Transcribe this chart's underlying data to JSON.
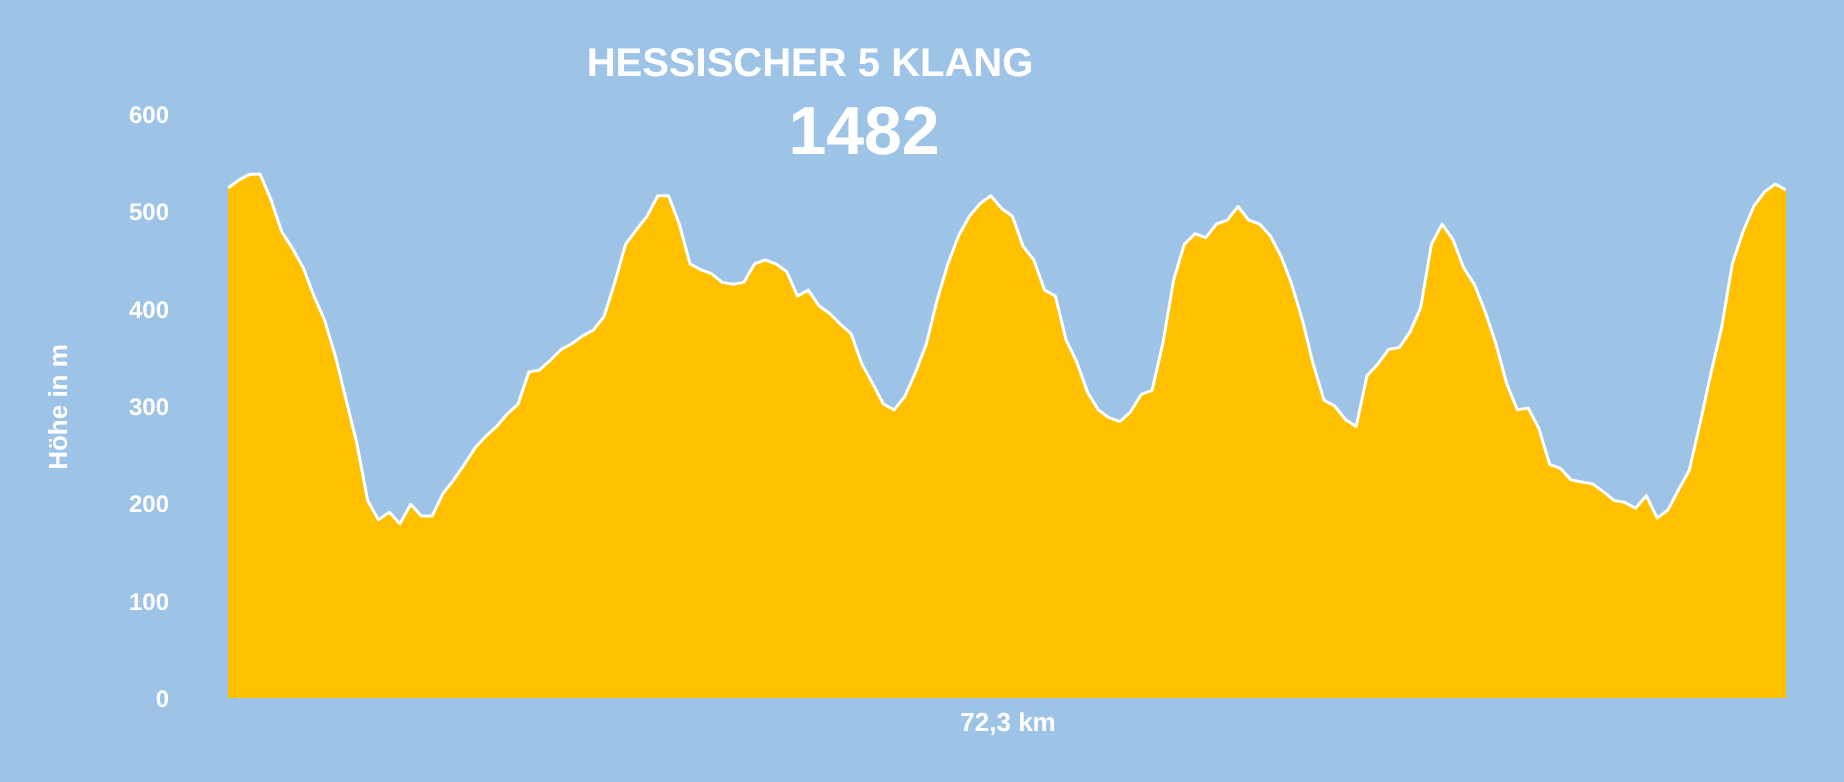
{
  "chart_data": {
    "type": "area",
    "title": "HESSISCHER 5 KLANG",
    "annotations": [
      "1482"
    ],
    "xlabel": "72,3 km",
    "ylabel": "Höhe in m",
    "categories": [
      null,
      null,
      null,
      null,
      null,
      null,
      null,
      null,
      null,
      null,
      null,
      null,
      null,
      null,
      null,
      null,
      null,
      null,
      null,
      null,
      null,
      null,
      null,
      null,
      null,
      null,
      null,
      null,
      null,
      null,
      null,
      null,
      null,
      null,
      null,
      null,
      null,
      null,
      null,
      null,
      null,
      null,
      null,
      null,
      null,
      null,
      null,
      null,
      null,
      null,
      null,
      null,
      null,
      null,
      null,
      null,
      null,
      null,
      null,
      null,
      null,
      null,
      null,
      null,
      null,
      null,
      null,
      null,
      null,
      null,
      null,
      null,
      null,
      null,
      null,
      null,
      null,
      null,
      null,
      null,
      null,
      null,
      null,
      null,
      null,
      null,
      null,
      null,
      null,
      null,
      null,
      null,
      null,
      null,
      null,
      null,
      null,
      null,
      null,
      null,
      null,
      null,
      null,
      null,
      null,
      null,
      null,
      null,
      null,
      null,
      null,
      null,
      null,
      null,
      null,
      null,
      null,
      null,
      null,
      null,
      null,
      null,
      null,
      null,
      null,
      null,
      null,
      null,
      null,
      null,
      null,
      null,
      null,
      null,
      null,
      null,
      null,
      null,
      null,
      null,
      null,
      null,
      null,
      null,
      null,
      null
    ],
    "series": [
      {
        "color": "#ffc000",
        "values": [
          524,
          532,
          538,
          538,
          512,
          479,
          462,
          442,
          413,
          388,
          351,
          306,
          261,
          203,
          183,
          191,
          179,
          199,
          187,
          187,
          210,
          224,
          240,
          257,
          269,
          279,
          292,
          302,
          335,
          337,
          347,
          358,
          364,
          372,
          378,
          392,
          427,
          466,
          481,
          495,
          516,
          516,
          487,
          446,
          440,
          436,
          427,
          425,
          427,
          446,
          450,
          446,
          438,
          413,
          419,
          403,
          395,
          384,
          374,
          343,
          323,
          302,
          296,
          310,
          335,
          364,
          409,
          446,
          475,
          495,
          508,
          516,
          503,
          495,
          464,
          450,
          419,
          413,
          368,
          345,
          314,
          296,
          288,
          284,
          294,
          312,
          316,
          364,
          429,
          466,
          477,
          473,
          487,
          491,
          505,
          491,
          487,
          475,
          454,
          425,
          388,
          343,
          306,
          300,
          286,
          279,
          331,
          343,
          358,
          360,
          376,
          401,
          466,
          487,
          471,
          442,
          425,
          397,
          364,
          323,
          296,
          298,
          277,
          240,
          236,
          224,
          222,
          220,
          212,
          203,
          201,
          195,
          208,
          185,
          193,
          214,
          234,
          282,
          333,
          380,
          446,
          479,
          505,
          520,
          528,
          522
        ]
      }
    ],
    "ylim": [
      0,
      600
    ],
    "yticks": [
      0,
      100,
      200,
      300,
      400,
      500,
      600
    ],
    "tick_labels": "y",
    "grid": false
  }
}
